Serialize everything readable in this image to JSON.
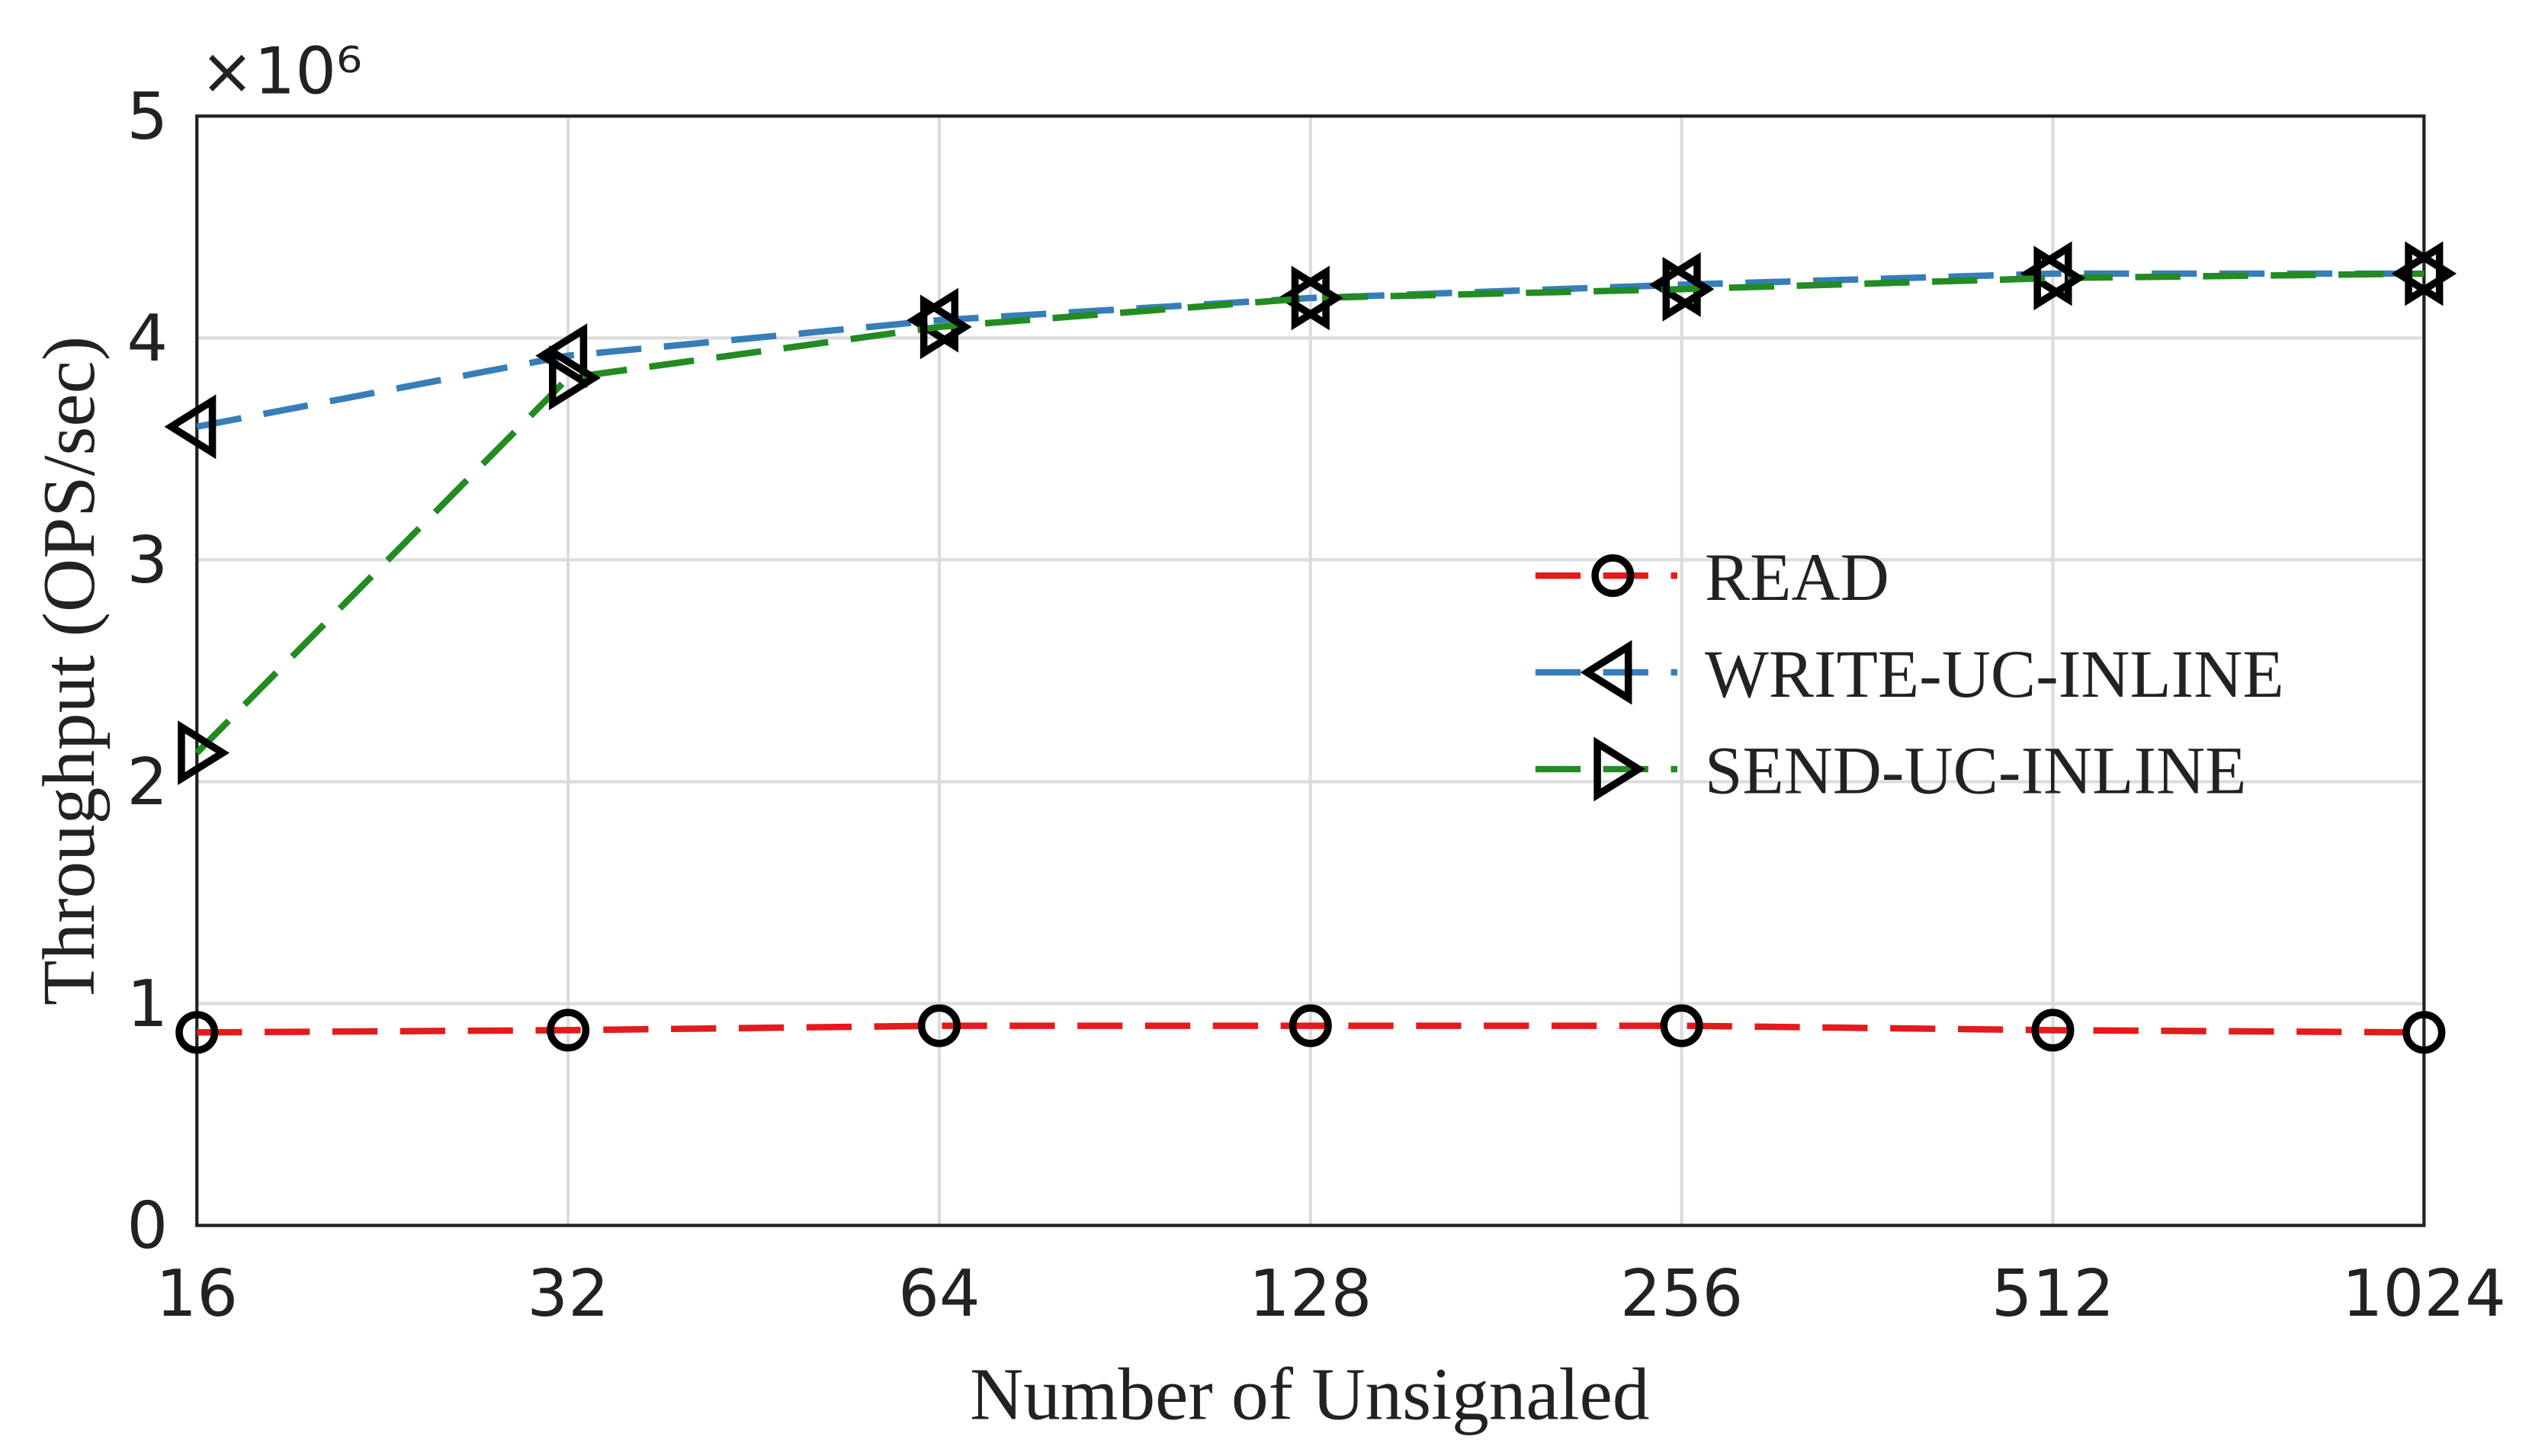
{
  "chart_data": {
    "type": "line",
    "x_label": "Number of Unsignaled",
    "y_label": "Throughput (OPS/sec)",
    "y_multiplier": "×10⁶",
    "x": [
      16,
      32,
      64,
      128,
      256,
      512,
      1024
    ],
    "x_log_base": 2,
    "xlim": [
      16,
      1024
    ],
    "xticks": [
      16,
      32,
      64,
      128,
      256,
      512,
      1024
    ],
    "ylim": [
      0,
      5
    ],
    "yticks": [
      0,
      1,
      2,
      3,
      4,
      5
    ],
    "grid": true,
    "legend": "right",
    "series": [
      {
        "name": "READ",
        "color": "#e41a1c",
        "marker": "circle",
        "values": [
          0.87,
          0.88,
          0.9,
          0.9,
          0.9,
          0.88,
          0.87
        ]
      },
      {
        "name": "WRITE-UC-INLINE",
        "color": "#377eb8",
        "marker": "triangle-left",
        "values": [
          3.6,
          3.92,
          4.08,
          4.18,
          4.24,
          4.29,
          4.29
        ]
      },
      {
        "name": "SEND-UC-INLINE",
        "color": "#228b22",
        "marker": "triangle-right",
        "values": [
          2.13,
          3.82,
          4.05,
          4.18,
          4.22,
          4.27,
          4.29
        ]
      }
    ]
  }
}
